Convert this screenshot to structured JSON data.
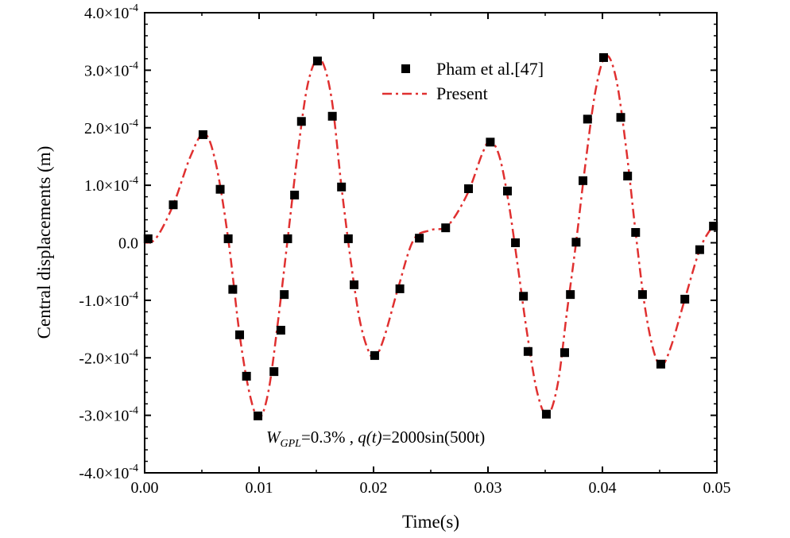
{
  "chart_data": {
    "type": "line",
    "xlabel": "Time(s)",
    "ylabel": "Central displacements (m)",
    "xlim": [
      0,
      0.05
    ],
    "ylim": [
      -0.0004,
      0.0004
    ],
    "x_ticks": [
      0.0,
      0.01,
      0.02,
      0.03,
      0.04,
      0.05
    ],
    "x_tick_labels": [
      "0.00",
      "0.01",
      "0.02",
      "0.03",
      "0.04",
      "0.05"
    ],
    "y_ticks": [
      0.0004,
      0.0003,
      0.0002,
      0.0001,
      0,
      -0.0001,
      -0.0002,
      -0.0003,
      -0.0004
    ],
    "y_tick_labels": [
      {
        "mant": "4.0×10",
        "exp": "-4"
      },
      {
        "mant": "3.0×10",
        "exp": "-4"
      },
      {
        "mant": "2.0×10",
        "exp": "-4"
      },
      {
        "mant": "1.0×10",
        "exp": "-4"
      },
      {
        "mant": "0.0",
        "exp": ""
      },
      {
        "mant": "-1.0×10",
        "exp": "-4"
      },
      {
        "mant": "-2.0×10",
        "exp": "-4"
      },
      {
        "mant": "-3.0×10",
        "exp": "-4"
      },
      {
        "mant": "-4.0×10",
        "exp": "-4"
      }
    ],
    "legend": {
      "placement": "top-center",
      "entries": [
        "Pham et al.[47]",
        "Present"
      ]
    },
    "annotation": {
      "w": "W",
      "w_sub": "GPL",
      "w_val": "=0.3% , ",
      "q": "q(t)",
      "q_val": "=2000sin(500t)"
    },
    "colors": {
      "present": "#e03030",
      "pham": "#000000"
    },
    "series": [
      {
        "name": "Pham et al.[47]",
        "style": "square-markers",
        "x": [
          0.0003,
          0.0025,
          0.0051,
          0.0066,
          0.0073,
          0.0077,
          0.0083,
          0.0089,
          0.0099,
          0.0113,
          0.0119,
          0.0122,
          0.0125,
          0.0131,
          0.0137,
          0.0151,
          0.0164,
          0.0172,
          0.0178,
          0.0183,
          0.0201,
          0.0223,
          0.024,
          0.0263,
          0.0283,
          0.0302,
          0.0317,
          0.0324,
          0.0331,
          0.0335,
          0.0351,
          0.0367,
          0.0372,
          0.0377,
          0.0383,
          0.0387,
          0.0401,
          0.0416,
          0.0422,
          0.0429,
          0.0435,
          0.0451,
          0.0472,
          0.0485,
          0.0497
        ],
        "y": [
          7e-06,
          6.6e-05,
          0.000188,
          9.3e-05,
          7e-06,
          -8.1e-05,
          -0.00016,
          -0.000232,
          -0.000301,
          -0.000224,
          -0.000152,
          -9e-05,
          7e-06,
          8.3e-05,
          0.000211,
          0.000316,
          0.00022,
          9.7e-05,
          7e-06,
          -7.3e-05,
          -0.000196,
          -8e-05,
          8e-06,
          2.6e-05,
          9.4e-05,
          0.000175,
          9e-05,
          0.0,
          -9.3e-05,
          -0.000189,
          -0.000298,
          -0.000191,
          -9e-05,
          1e-06,
          0.000108,
          0.000215,
          0.000322,
          0.000218,
          0.000116,
          1.8e-05,
          -9e-05,
          -0.000211,
          -9.8e-05,
          -1.2e-05,
          2.9e-05
        ]
      },
      {
        "name": "Present",
        "style": "dash-dot-line",
        "x": [
          0,
          0.001,
          0.0025,
          0.004,
          0.0052,
          0.0062,
          0.0073,
          0.0083,
          0.0092,
          0.01,
          0.0108,
          0.0116,
          0.0125,
          0.0134,
          0.0143,
          0.0153,
          0.0163,
          0.0172,
          0.018,
          0.0188,
          0.0196,
          0.0202,
          0.021,
          0.0222,
          0.0235,
          0.025,
          0.0265,
          0.0282,
          0.0295,
          0.0302,
          0.031,
          0.0318,
          0.0326,
          0.0334,
          0.0343,
          0.0352,
          0.0361,
          0.0369,
          0.0377,
          0.0385,
          0.0394,
          0.0403,
          0.0412,
          0.0421,
          0.0429,
          0.0437,
          0.0445,
          0.0452,
          0.046,
          0.0472,
          0.0485,
          0.0495,
          0.05
        ],
        "y": [
          0,
          8e-06,
          6.6e-05,
          0.00015,
          0.00019,
          0.00014,
          7e-06,
          -0.00016,
          -0.000265,
          -0.000305,
          -0.00026,
          -0.000145,
          7e-06,
          0.00016,
          0.00028,
          0.00032,
          0.000255,
          9.7e-05,
          -3e-05,
          -0.000135,
          -0.00019,
          -0.000198,
          -0.00016,
          -7.5e-05,
          5e-06,
          2.2e-05,
          3e-05,
          8.5e-05,
          0.000155,
          0.000177,
          0.00015,
          7e-05,
          -4e-05,
          -0.000155,
          -0.00026,
          -0.0003,
          -0.000245,
          -0.00012,
          1e-06,
          0.000135,
          0.000265,
          0.000325,
          0.000285,
          0.00016,
          1.8e-05,
          -0.00011,
          -0.00019,
          -0.000213,
          -0.00018,
          -9.8e-05,
          -1.2e-05,
          2.5e-05,
          3.5e-05
        ]
      }
    ]
  }
}
